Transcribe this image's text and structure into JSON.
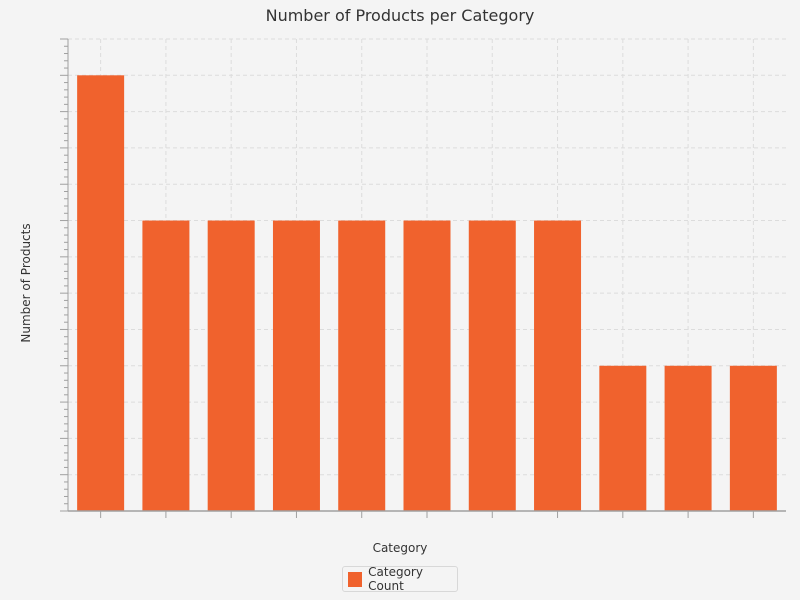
{
  "chart_data": {
    "type": "bar",
    "title": "Number of Products per Category",
    "xlabel": "Category",
    "ylabel": "Number of Products",
    "categories": [
      "",
      "",
      "",
      "",
      "",
      "",
      "",
      "",
      "",
      "",
      ""
    ],
    "series": [
      {
        "name": "Category Count",
        "color": "#f0622d",
        "values": [
          6,
          4,
          4,
          4,
          4,
          4,
          4,
          4,
          2,
          2,
          2
        ]
      }
    ],
    "ylim": [
      0,
      6.5
    ],
    "grid": true,
    "legend_position": "bottom"
  }
}
